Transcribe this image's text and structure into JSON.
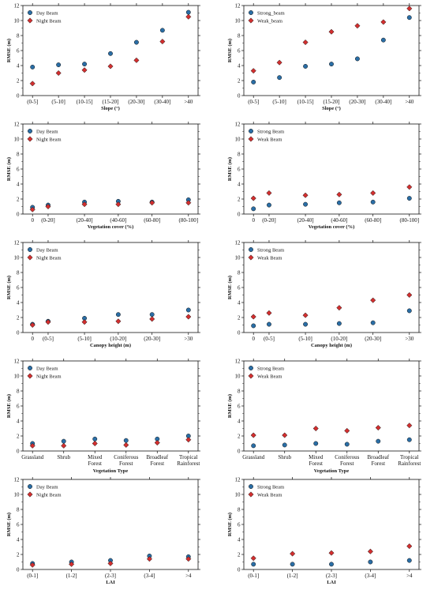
{
  "chart_data": [
    {
      "type": "scatter",
      "categories": [
        "(0-5]",
        "(5-10]",
        "(10-15]",
        "(15-20]",
        "(20-30]",
        "(30-40]",
        ">40"
      ],
      "series": [
        {
          "name": "Day Beam",
          "values": [
            3.8,
            4.1,
            4.2,
            5.6,
            7.1,
            8.7,
            11.1
          ]
        },
        {
          "name": "Night Beam",
          "values": [
            1.6,
            3.0,
            3.4,
            3.9,
            4.7,
            7.2,
            10.5
          ]
        }
      ],
      "xlabel": "Slope (°)",
      "ylabel": "RMSE (m)",
      "ylim": [
        0,
        12
      ],
      "yticks": [
        0,
        2,
        4,
        6,
        8,
        10,
        12
      ],
      "legend": "top-left"
    },
    {
      "type": "scatter",
      "categories": [
        "(0-5]",
        "(5-10]",
        "(10-15]",
        "(15-20]",
        "(20-30]",
        "(30-40]",
        ">40"
      ],
      "series": [
        {
          "name": "Strong_beam",
          "values": [
            1.8,
            2.4,
            3.9,
            4.2,
            4.9,
            7.4,
            10.4
          ]
        },
        {
          "name": "Weak_beam",
          "values": [
            3.3,
            4.4,
            7.1,
            8.5,
            9.3,
            9.8,
            11.6
          ]
        }
      ],
      "xlabel": "Slope (°)",
      "ylabel": "RMSE (m)",
      "ylim": [
        0,
        12
      ],
      "yticks": [
        0,
        2,
        4,
        6,
        8,
        10,
        12
      ],
      "legend": "top-left"
    },
    {
      "type": "scatter",
      "categories": [
        "0",
        "(0-20]",
        "(20-40]",
        "(40-60]",
        "(60-80]",
        "(80-100]"
      ],
      "x_positions": [
        0,
        0.6,
        2,
        3.3,
        4.6,
        6
      ],
      "series": [
        {
          "name": "Day Beam",
          "values": [
            0.9,
            1.2,
            1.6,
            1.7,
            1.6,
            1.9
          ]
        },
        {
          "name": "Night Beam",
          "values": [
            0.6,
            1.0,
            1.3,
            1.3,
            1.5,
            1.5
          ]
        }
      ],
      "xlabel": "Vegetation cover (%)",
      "ylabel": "RMSE (m)",
      "ylim": [
        0,
        12
      ],
      "yticks": [
        0,
        2,
        4,
        6,
        8,
        10,
        12
      ],
      "legend": "top-left"
    },
    {
      "type": "scatter",
      "categories": [
        "0",
        "(0-20]",
        "(20-40]",
        "(40-60]",
        "(60-80]",
        "(80-100]"
      ],
      "x_positions": [
        0,
        0.6,
        2,
        3.3,
        4.6,
        6
      ],
      "series": [
        {
          "name": "Strong Beam",
          "values": [
            0.7,
            1.2,
            1.3,
            1.5,
            1.6,
            2.1
          ]
        },
        {
          "name": "Weak Beam",
          "values": [
            2.1,
            2.8,
            2.5,
            2.6,
            2.8,
            3.6
          ]
        }
      ],
      "xlabel": "Vegetation cover (%)",
      "ylabel": "RMSE (m)",
      "ylim": [
        0,
        12
      ],
      "yticks": [
        0,
        2,
        4,
        6,
        8,
        10,
        12
      ],
      "legend": "top-left"
    },
    {
      "type": "scatter",
      "categories": [
        "0",
        "(0-5]",
        "(5-10]",
        "(10-20]",
        "(20-30]",
        ">30"
      ],
      "x_positions": [
        0,
        0.6,
        2,
        3.3,
        4.6,
        6
      ],
      "series": [
        {
          "name": "Day Beam",
          "values": [
            1.1,
            1.5,
            1.9,
            2.4,
            2.4,
            3.0
          ]
        },
        {
          "name": "Night Beam",
          "values": [
            1.0,
            1.4,
            1.4,
            1.5,
            1.8,
            2.1
          ]
        }
      ],
      "xlabel": "Canopy height (m)",
      "ylabel": "RMSE (m)",
      "ylim": [
        0,
        12
      ],
      "yticks": [
        0,
        2,
        4,
        6,
        8,
        10,
        12
      ],
      "legend": "top-left"
    },
    {
      "type": "scatter",
      "categories": [
        "0",
        "(0-5]",
        "(5-10]",
        "(10-20]",
        "(20-30]",
        ">30"
      ],
      "x_positions": [
        0,
        0.6,
        2,
        3.3,
        4.6,
        6
      ],
      "series": [
        {
          "name": "Strong Beam",
          "values": [
            0.9,
            1.1,
            1.1,
            1.2,
            1.3,
            2.9
          ]
        },
        {
          "name": "Weak Beam",
          "values": [
            2.1,
            2.6,
            2.3,
            3.3,
            4.3,
            5.0
          ]
        }
      ],
      "xlabel": "Canopy height (m)",
      "ylabel": "RMSE (m)",
      "ylim": [
        0,
        12
      ],
      "yticks": [
        0,
        2,
        4,
        6,
        8,
        10,
        12
      ],
      "legend": "top-left"
    },
    {
      "type": "scatter",
      "categories": [
        "Grassland",
        "Shrub",
        "Mixed\nForest",
        "Coniferous\nForest",
        "Broadleaf\nForest",
        "Tropical\nRainforest"
      ],
      "series": [
        {
          "name": "Day Beam",
          "values": [
            1.0,
            1.3,
            1.6,
            1.4,
            1.6,
            2.0
          ]
        },
        {
          "name": "Night Beam",
          "values": [
            0.7,
            0.7,
            1.0,
            0.8,
            1.1,
            1.5
          ]
        }
      ],
      "xlabel": "Vegetation Type",
      "ylabel": "RMSE (m)",
      "ylim": [
        0,
        12
      ],
      "yticks": [
        0,
        2,
        4,
        6,
        8,
        10,
        12
      ],
      "legend": "top-left"
    },
    {
      "type": "scatter",
      "categories": [
        "Grassland",
        "Shrub",
        "Mixed\nForest",
        "Coniferous\nForest",
        "Broadleaf\nForest",
        "Tropical\nRainforest"
      ],
      "series": [
        {
          "name": "Strong Beam",
          "values": [
            0.7,
            0.8,
            1.0,
            0.9,
            1.3,
            1.5
          ]
        },
        {
          "name": "Weak Beam",
          "values": [
            2.1,
            2.1,
            3.0,
            2.7,
            3.1,
            3.4
          ]
        }
      ],
      "xlabel": "Vegetation Type",
      "ylabel": "RMSE (m)",
      "ylim": [
        0,
        12
      ],
      "yticks": [
        0,
        2,
        4,
        6,
        8,
        10,
        12
      ],
      "legend": "top-left"
    },
    {
      "type": "scatter",
      "categories": [
        "(0-1]",
        "(1-2]",
        "(2-3]",
        "(3-4]",
        ">4"
      ],
      "series": [
        {
          "name": "Day Beam",
          "values": [
            0.8,
            1.0,
            1.2,
            1.8,
            1.7
          ]
        },
        {
          "name": "Night Beam",
          "values": [
            0.6,
            0.7,
            0.8,
            1.4,
            1.4
          ]
        }
      ],
      "xlabel": "LAI",
      "ylabel": "RMSE (m)",
      "ylim": [
        0,
        12
      ],
      "yticks": [
        0,
        2,
        4,
        6,
        8,
        10,
        12
      ],
      "legend": "top-left"
    },
    {
      "type": "scatter",
      "categories": [
        "(0-1]",
        "(1-2]",
        "(2-3]",
        "(3-4]",
        ">4"
      ],
      "series": [
        {
          "name": "Strong Beam",
          "values": [
            0.7,
            0.7,
            0.7,
            1.0,
            1.2
          ]
        },
        {
          "name": "Weak Beam",
          "values": [
            1.5,
            2.1,
            2.2,
            2.4,
            3.1
          ]
        }
      ],
      "xlabel": "LAI",
      "ylabel": "RMSE (m)",
      "ylim": [
        0,
        12
      ],
      "yticks": [
        0,
        2,
        4,
        6,
        8,
        10,
        12
      ],
      "legend": "top-left"
    }
  ],
  "style": {
    "circle_color": "#2a6ea6",
    "diamond_color": "#d32f2f",
    "marker_edge": "#111111"
  }
}
